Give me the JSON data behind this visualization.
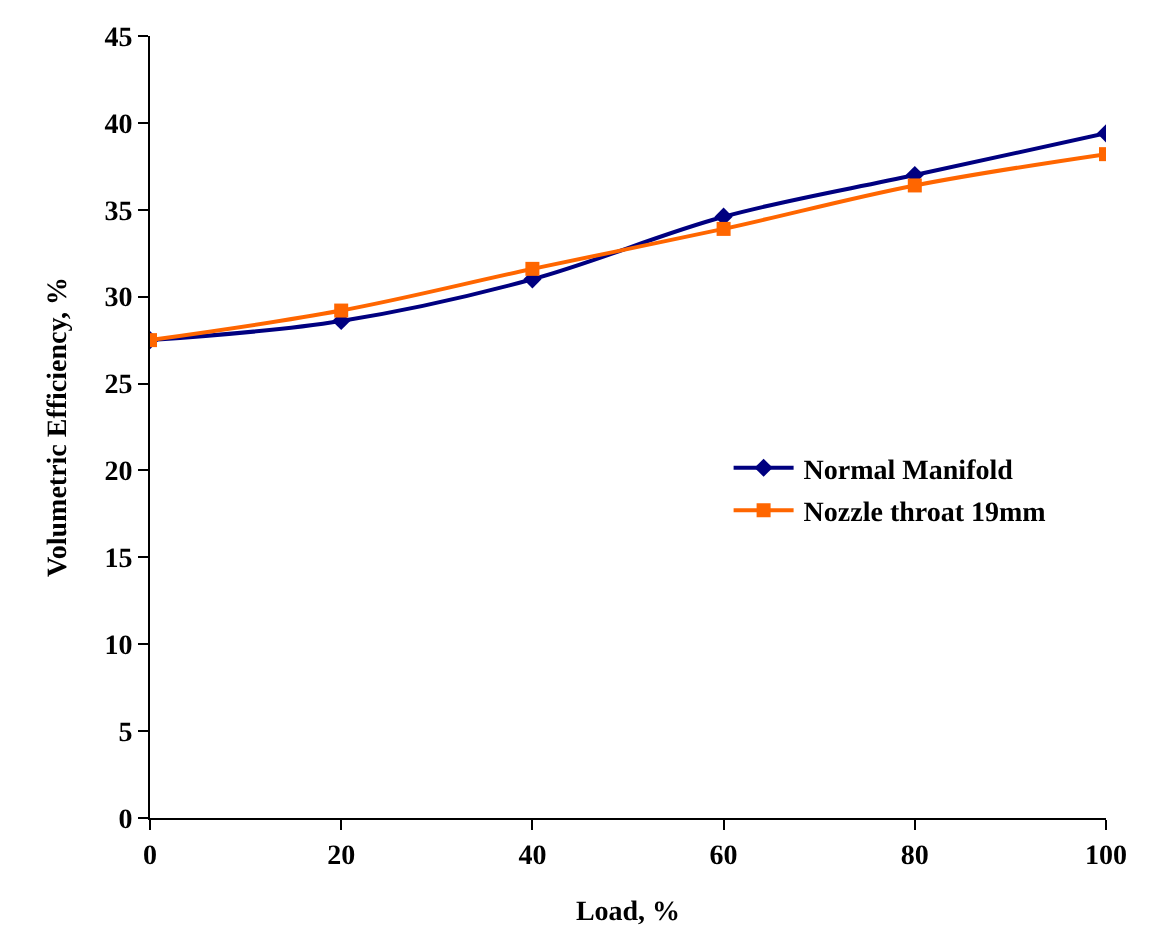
{
  "chart_data": {
    "type": "line",
    "xlabel": "Load, %",
    "ylabel": "Volumetric Efficiency, %",
    "x": [
      0,
      20,
      40,
      60,
      80,
      100
    ],
    "series": [
      {
        "name": "Normal Manifold",
        "color": "#000080",
        "marker": "diamond",
        "values": [
          27.5,
          28.6,
          31.0,
          34.6,
          37.0,
          39.4
        ]
      },
      {
        "name": "Nozzle throat 19mm",
        "color": "#ff6600",
        "marker": "square",
        "values": [
          27.5,
          29.2,
          31.6,
          33.9,
          36.4,
          38.2
        ]
      }
    ],
    "xlim": [
      0,
      100
    ],
    "xticks": [
      0,
      20,
      40,
      60,
      80,
      100
    ],
    "ylim": [
      0,
      45
    ],
    "yticks": [
      0,
      5,
      10,
      15,
      20,
      25,
      30,
      35,
      40,
      45
    ],
    "legend": "right",
    "line_style": "solid"
  }
}
